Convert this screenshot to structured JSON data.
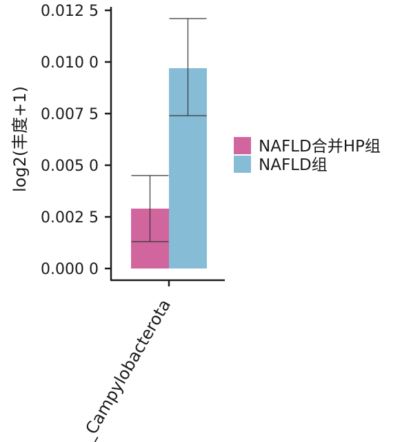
{
  "chart_data": {
    "type": "bar",
    "categories": [
      "p__Campylobacterota"
    ],
    "ylabel": "log2(丰度+1)",
    "ylim": [
      0,
      0.0125
    ],
    "yticks": [
      {
        "value": 0.0,
        "label": "0.000 0"
      },
      {
        "value": 0.0025,
        "label": "0.002 5"
      },
      {
        "value": 0.005,
        "label": "0.005 0"
      },
      {
        "value": 0.0075,
        "label": "0.007 5"
      },
      {
        "value": 0.01,
        "label": "0.010 0"
      },
      {
        "value": 0.0125,
        "label": "0.012 5"
      }
    ],
    "series": [
      {
        "name": "NAFLD合并HP组",
        "color": "#D1669E",
        "values": [
          0.0029
        ],
        "error_low": [
          0.0013
        ],
        "error_high": [
          0.0045
        ]
      },
      {
        "name": "NAFLD组",
        "color": "#86BCD6",
        "values": [
          0.0097
        ],
        "error_low": [
          0.0074
        ],
        "error_high": [
          0.0121
        ]
      }
    ],
    "legend_position": "right",
    "grid": false
  }
}
